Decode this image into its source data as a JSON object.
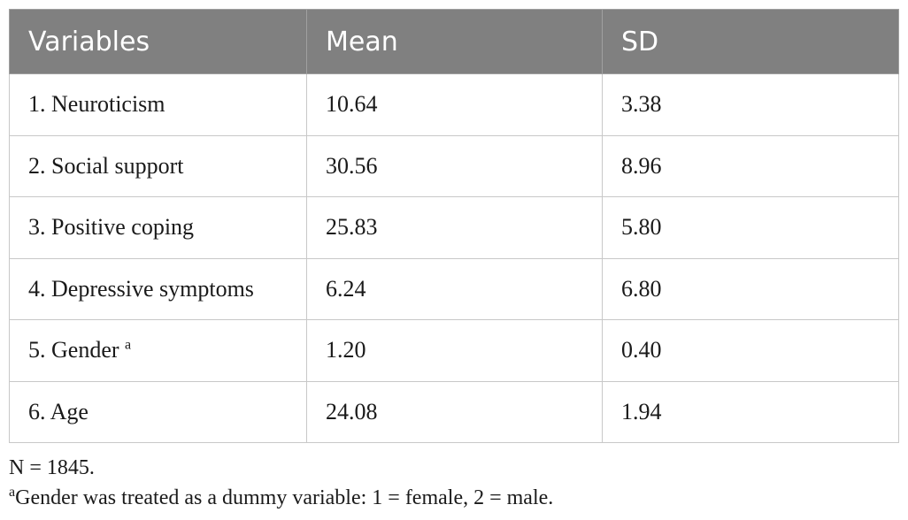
{
  "table": {
    "headers": [
      "Variables",
      "Mean",
      "SD"
    ],
    "rows": [
      {
        "variable": "1. Neuroticism",
        "sup": "",
        "mean": "10.64",
        "sd": "3.38"
      },
      {
        "variable": "2. Social support",
        "sup": "",
        "mean": "30.56",
        "sd": "8.96"
      },
      {
        "variable": "3. Positive coping",
        "sup": "",
        "mean": "25.83",
        "sd": "5.80"
      },
      {
        "variable": "4. Depressive symptoms",
        "sup": "",
        "mean": "6.24",
        "sd": "6.80"
      },
      {
        "variable": "5. Gender ",
        "sup": "a",
        "mean": "1.20",
        "sd": "0.40"
      },
      {
        "variable": "6. Age",
        "sup": "",
        "mean": "24.08",
        "sd": "1.94"
      }
    ]
  },
  "notes": {
    "n_note": "N = 1845.",
    "footnote_marker": "a",
    "footnote_text": "Gender was treated as a dummy variable: 1 = female, 2 = male."
  }
}
